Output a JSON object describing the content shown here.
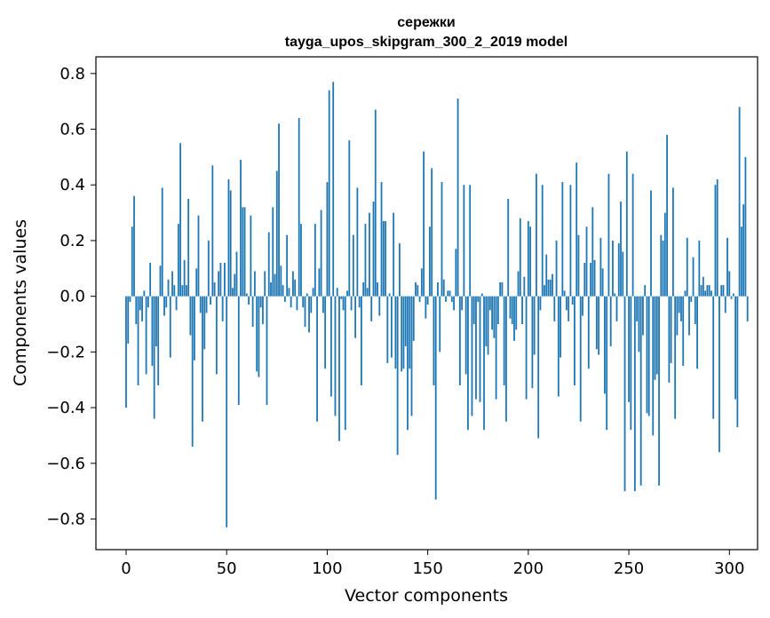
{
  "chart_data": {
    "type": "bar",
    "title": "сережки",
    "subtitle": "tayga_upos_skipgram_300_2_2019 model",
    "xlabel": "Vector components",
    "ylabel": "Components values",
    "xlim": [
      -15,
      314
    ],
    "ylim": [
      -0.91,
      0.86
    ],
    "xticks": [
      0,
      50,
      100,
      150,
      200,
      250,
      300
    ],
    "xtick_labels": [
      "0",
      "50",
      "100",
      "150",
      "200",
      "250",
      "300"
    ],
    "yticks": [
      -0.8,
      -0.6,
      -0.4,
      -0.2,
      0.0,
      0.2,
      0.4,
      0.6,
      0.8
    ],
    "ytick_labels": [
      "−0.8",
      "−0.6",
      "−0.4",
      "−0.2",
      "0.0",
      "0.2",
      "0.4",
      "0.6",
      "0.8"
    ],
    "bar_color": "#1f77b4",
    "grid": false,
    "x_start": 0,
    "values": [
      -0.4,
      -0.17,
      -0.02,
      0.25,
      0.36,
      -0.1,
      -0.32,
      -0.05,
      -0.09,
      0.02,
      -0.28,
      -0.04,
      0.12,
      -0.25,
      -0.44,
      -0.18,
      -0.32,
      0.11,
      0.39,
      -0.07,
      -0.04,
      0.06,
      -0.22,
      0.09,
      0.04,
      -0.05,
      0.26,
      0.55,
      0.04,
      0.13,
      0.04,
      0.35,
      -0.14,
      -0.54,
      -0.23,
      0.1,
      0.29,
      -0.06,
      -0.45,
      -0.19,
      -0.06,
      0.2,
      -0.03,
      0.47,
      0.05,
      -0.28,
      0.09,
      0.12,
      -0.09,
      0.12,
      -0.83,
      0.42,
      0.38,
      0.03,
      0.08,
      0.16,
      -0.39,
      0.49,
      0.32,
      0.32,
      0.01,
      -0.03,
      0.29,
      -0.11,
      0.09,
      -0.27,
      -0.29,
      -0.04,
      -0.1,
      0.09,
      -0.39,
      0.23,
      0.05,
      0.32,
      0.08,
      0.45,
      0.62,
      0.11,
      0.04,
      -0.02,
      0.22,
      0.03,
      -0.04,
      0.09,
      0.06,
      -0.05,
      0.64,
      0.26,
      -0.04,
      -0.11,
      0.01,
      -0.13,
      -0.06,
      0.03,
      0.26,
      -0.45,
      0.1,
      0.31,
      -0.06,
      -0.26,
      0.41,
      0.74,
      -0.36,
      0.77,
      -0.43,
      0.03,
      -0.52,
      -0.01,
      -0.05,
      -0.48,
      0.02,
      0.56,
      -0.05,
      0.22,
      -0.15,
      0.39,
      -0.04,
      -0.32,
      0.05,
      0.26,
      0.03,
      0.3,
      -0.09,
      0.34,
      0.67,
      0.05,
      -0.07,
      0.41,
      0.27,
      0.27,
      -0.24,
      0.01,
      -0.22,
      0.3,
      -0.26,
      -0.57,
      0.19,
      -0.27,
      -0.26,
      -0.18,
      -0.48,
      -0.26,
      -0.43,
      -0.16,
      0.05,
      0.04,
      -0.02,
      0.1,
      0.52,
      -0.08,
      -0.03,
      0.25,
      0.46,
      -0.32,
      -0.73,
      0.05,
      -0.2,
      0.41,
      0.06,
      -0.02,
      0.02,
      0.02,
      -0.02,
      -0.05,
      0.17,
      0.71,
      -0.32,
      -0.05,
      0.4,
      -0.28,
      -0.48,
      0.4,
      -0.43,
      -0.1,
      -0.37,
      -0.02,
      -0.38,
      0.01,
      -0.48,
      -0.18,
      -0.21,
      -0.05,
      -0.12,
      -0.15,
      -0.37,
      -0.1,
      0.05,
      0.05,
      -0.32,
      -0.45,
      0.35,
      -0.08,
      -0.1,
      -0.16,
      -0.12,
      0.09,
      0.28,
      -0.1,
      0.07,
      -0.37,
      0.27,
      0.25,
      -0.33,
      -0.21,
      0.44,
      -0.51,
      -0.05,
      0.4,
      0.04,
      0.15,
      0.06,
      0.06,
      0.08,
      -0.09,
      0.2,
      -0.36,
      -0.22,
      0.41,
      0.02,
      -0.05,
      -0.09,
      0.4,
      -0.03,
      -0.32,
      0.48,
      0.22,
      -0.45,
      -0.07,
      0.12,
      0.25,
      -0.26,
      0.12,
      0.32,
      0.13,
      -0.19,
      -0.21,
      0.21,
      0.1,
      -0.35,
      -0.48,
      0.44,
      -0.18,
      0.2,
      0.01,
      -0.09,
      0.19,
      0.34,
      0.16,
      -0.7,
      0.52,
      -0.38,
      -0.48,
      0.44,
      -0.7,
      -0.09,
      -0.2,
      -0.68,
      -0.14,
      0.04,
      -0.42,
      -0.43,
      0.38,
      -0.5,
      -0.3,
      -0.28,
      -0.68,
      0.22,
      0.2,
      0.3,
      0.58,
      -0.31,
      -0.24,
      0.39,
      -0.44,
      -0.14,
      -0.06,
      -0.09,
      -0.25,
      0.02,
      0.21,
      -0.14,
      -0.02,
      0.14,
      -0.1,
      -0.26,
      0.2,
      0.04,
      0.07,
      0.02,
      0.04,
      0.04,
      0.02,
      -0.44,
      0.4,
      0.42,
      -0.56,
      0.04,
      0.04,
      -0.06,
      0.21,
      0.09,
      -0.01,
      0.01,
      -0.37,
      -0.47,
      0.68,
      0.25,
      0.33,
      0.5,
      -0.09
    ]
  }
}
